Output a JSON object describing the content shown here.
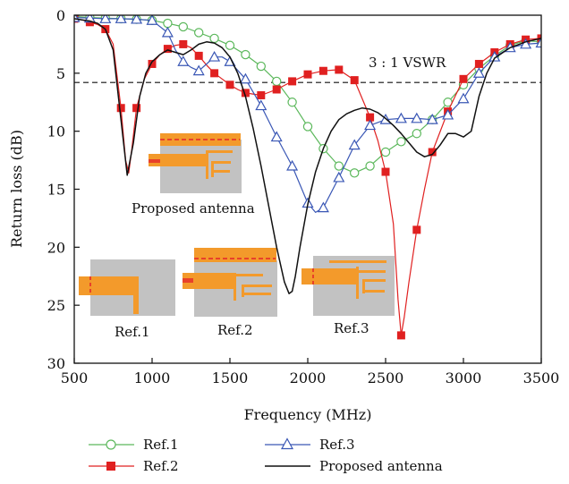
{
  "chart_data": {
    "type": "line",
    "xlabel": "Frequency (MHz)",
    "ylabel": "Return loss (dB)",
    "xlim": [
      500,
      3500
    ],
    "ylim": [
      0,
      30
    ],
    "y_inverted": true,
    "xticks": [
      500,
      1000,
      1500,
      2000,
      2500,
      3000,
      3500
    ],
    "yticks": [
      0,
      5,
      10,
      15,
      20,
      25,
      30
    ],
    "grid": false,
    "legend_position": "bottom",
    "reference_line": {
      "label": "3 : 1 VSWR",
      "y": 5.8,
      "style": "dashed"
    },
    "annotations": [
      {
        "text": "Proposed antenna"
      },
      {
        "text": "Ref.1"
      },
      {
        "text": "Ref.2"
      },
      {
        "text": "Ref.3"
      }
    ],
    "series": [
      {
        "name": "Ref.1",
        "color": "#5cb85c",
        "marker": "circle-open",
        "x": [
          500,
          600,
          700,
          800,
          900,
          1000,
          1100,
          1200,
          1300,
          1400,
          1500,
          1600,
          1700,
          1800,
          1900,
          2000,
          2100,
          2200,
          2300,
          2400,
          2500,
          2600,
          2700,
          2800,
          2900,
          3000,
          3100,
          3200,
          3300,
          3400,
          3500
        ],
        "y": [
          0.1,
          0.2,
          0.25,
          0.3,
          0.35,
          0.45,
          0.7,
          1.0,
          1.5,
          2.0,
          2.6,
          3.4,
          4.4,
          5.7,
          7.5,
          9.6,
          11.5,
          13.0,
          13.6,
          13.0,
          11.8,
          10.9,
          10.2,
          9.0,
          7.5,
          6.0,
          4.6,
          3.5,
          2.6,
          2.2,
          2.3
        ]
      },
      {
        "name": "Ref.2",
        "color": "#e02020",
        "marker": "square-filled",
        "x": [
          500,
          550,
          600,
          650,
          700,
          750,
          800,
          830,
          850,
          870,
          900,
          950,
          1000,
          1050,
          1100,
          1150,
          1200,
          1250,
          1300,
          1350,
          1400,
          1450,
          1500,
          1550,
          1600,
          1700,
          1800,
          1900,
          2000,
          2100,
          2200,
          2300,
          2400,
          2450,
          2500,
          2550,
          2580,
          2600,
          2620,
          2650,
          2700,
          2750,
          2800,
          2900,
          3000,
          3100,
          3200,
          3300,
          3400,
          3500
        ],
        "y": [
          0.3,
          0.4,
          0.6,
          0.8,
          1.2,
          2.5,
          8.0,
          12.5,
          13.6,
          11.5,
          8.0,
          5.5,
          4.2,
          3.4,
          2.9,
          2.6,
          2.5,
          2.8,
          3.5,
          4.3,
          5.0,
          5.5,
          6.0,
          6.4,
          6.7,
          6.9,
          6.4,
          5.7,
          5.1,
          4.8,
          4.7,
          5.6,
          8.8,
          10.8,
          13.5,
          18.0,
          24.5,
          27.6,
          26.0,
          23.0,
          18.5,
          15.0,
          11.8,
          8.3,
          5.5,
          4.2,
          3.2,
          2.5,
          2.1,
          2.0
        ]
      },
      {
        "name": "Ref.3",
        "color": "#3a57b5",
        "marker": "triangle-open",
        "x": [
          500,
          600,
          700,
          800,
          900,
          1000,
          1100,
          1150,
          1200,
          1250,
          1300,
          1350,
          1400,
          1450,
          1500,
          1600,
          1700,
          1800,
          1900,
          2000,
          2050,
          2100,
          2200,
          2300,
          2400,
          2500,
          2600,
          2700,
          2800,
          2900,
          3000,
          3100,
          3200,
          3300,
          3400,
          3500
        ],
        "y": [
          0.2,
          0.25,
          0.3,
          0.3,
          0.35,
          0.45,
          1.5,
          3.0,
          4.0,
          4.5,
          4.8,
          4.2,
          3.6,
          3.6,
          4.0,
          5.5,
          7.8,
          10.5,
          13.0,
          16.2,
          17.0,
          16.6,
          14.0,
          11.2,
          9.5,
          9.0,
          8.9,
          8.9,
          9.0,
          8.6,
          7.2,
          5.0,
          3.6,
          2.8,
          2.5,
          2.4
        ]
      },
      {
        "name": "Proposed antenna",
        "color": "#111111",
        "marker": "none",
        "x": [
          500,
          550,
          600,
          650,
          700,
          750,
          800,
          840,
          880,
          920,
          960,
          1000,
          1050,
          1100,
          1150,
          1200,
          1250,
          1300,
          1350,
          1400,
          1450,
          1500,
          1550,
          1600,
          1650,
          1700,
          1750,
          1800,
          1850,
          1880,
          1900,
          1920,
          1950,
          2000,
          2050,
          2100,
          2150,
          2200,
          2250,
          2300,
          2350,
          2400,
          2450,
          2500,
          2550,
          2600,
          2650,
          2700,
          2750,
          2800,
          2850,
          2900,
          2950,
          3000,
          3050,
          3100,
          3150,
          3200,
          3300,
          3400,
          3500
        ],
        "y": [
          0.3,
          0.4,
          0.5,
          0.7,
          1.2,
          3.0,
          9.0,
          13.8,
          11.0,
          7.0,
          5.0,
          4.0,
          3.4,
          3.0,
          3.2,
          3.4,
          3.0,
          2.5,
          2.3,
          2.4,
          2.8,
          3.6,
          5.0,
          7.0,
          9.8,
          13.0,
          16.5,
          20.0,
          23.0,
          24.0,
          23.8,
          22.5,
          20.0,
          16.3,
          13.5,
          11.5,
          10.0,
          9.0,
          8.5,
          8.2,
          8.0,
          8.1,
          8.4,
          8.9,
          9.5,
          10.2,
          11.0,
          11.8,
          12.2,
          12.0,
          11.2,
          10.2,
          10.2,
          10.5,
          10.0,
          7.0,
          5.0,
          3.7,
          2.8,
          2.3,
          2.0
        ]
      }
    ]
  }
}
